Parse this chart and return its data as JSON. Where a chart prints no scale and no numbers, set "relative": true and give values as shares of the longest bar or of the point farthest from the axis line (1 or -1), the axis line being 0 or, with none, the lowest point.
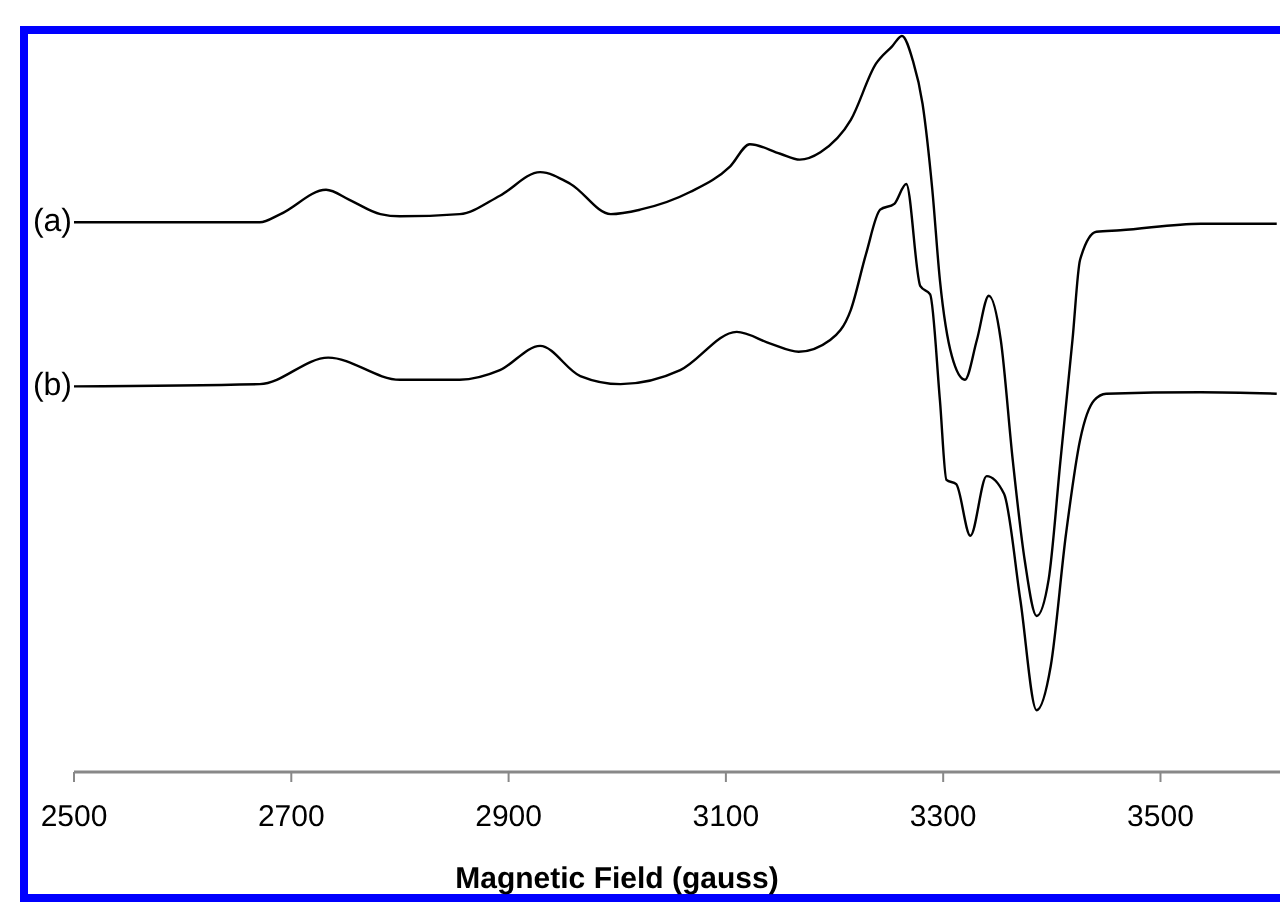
{
  "chart_data": {
    "type": "line",
    "relative": true,
    "xlabel": "Magnetic Field (gauss)",
    "xlim": [
      2500,
      3610
    ],
    "xticks": [
      2500,
      2700,
      2900,
      3100,
      3300,
      3500
    ],
    "legend": false,
    "marker": "none",
    "series": [
      {
        "name": "(a)",
        "color": "#000000",
        "x": [
          2500,
          2671,
          2690,
          2732,
          2754,
          2782,
          2800,
          2855,
          2892,
          2929,
          2957,
          2994,
          3021,
          3067,
          3104,
          3122,
          3150,
          3168,
          3187,
          3215,
          3238,
          3253,
          3262,
          3272,
          3281,
          3290,
          3297,
          3308,
          3320,
          3331,
          3342,
          3353,
          3364,
          3375,
          3386,
          3397,
          3408,
          3419,
          3426,
          3441,
          3463,
          3537,
          3607
        ],
        "values": [
          0.747,
          0.747,
          0.758,
          0.791,
          0.777,
          0.758,
          0.755,
          0.758,
          0.783,
          0.815,
          0.799,
          0.758,
          0.764,
          0.788,
          0.823,
          0.853,
          0.84,
          0.832,
          0.842,
          0.886,
          0.962,
          0.986,
          1.0,
          0.967,
          0.908,
          0.791,
          0.668,
          0.565,
          0.533,
          0.587,
          0.647,
          0.587,
          0.424,
          0.288,
          0.212,
          0.261,
          0.424,
          0.587,
          0.696,
          0.734,
          0.736,
          0.745,
          0.745
        ]
      },
      {
        "name": "(b)",
        "color": "#000000",
        "x": [
          2500,
          2671,
          2734,
          2800,
          2855,
          2892,
          2929,
          2966,
          3003,
          3058,
          3110,
          3141,
          3167,
          3196,
          3215,
          3229,
          3242,
          3255,
          3266,
          3279,
          3288,
          3297,
          3303,
          3312,
          3325,
          3340,
          3356,
          3371,
          3386,
          3399,
          3413,
          3426,
          3439,
          3450,
          3537,
          3607
        ],
        "values": [
          0.524,
          0.527,
          0.563,
          0.533,
          0.533,
          0.546,
          0.579,
          0.538,
          0.527,
          0.546,
          0.598,
          0.582,
          0.571,
          0.587,
          0.628,
          0.704,
          0.764,
          0.772,
          0.799,
          0.66,
          0.649,
          0.505,
          0.397,
          0.391,
          0.321,
          0.402,
          0.378,
          0.234,
          0.084,
          0.144,
          0.323,
          0.451,
          0.505,
          0.514,
          0.516,
          0.514
        ]
      }
    ]
  }
}
